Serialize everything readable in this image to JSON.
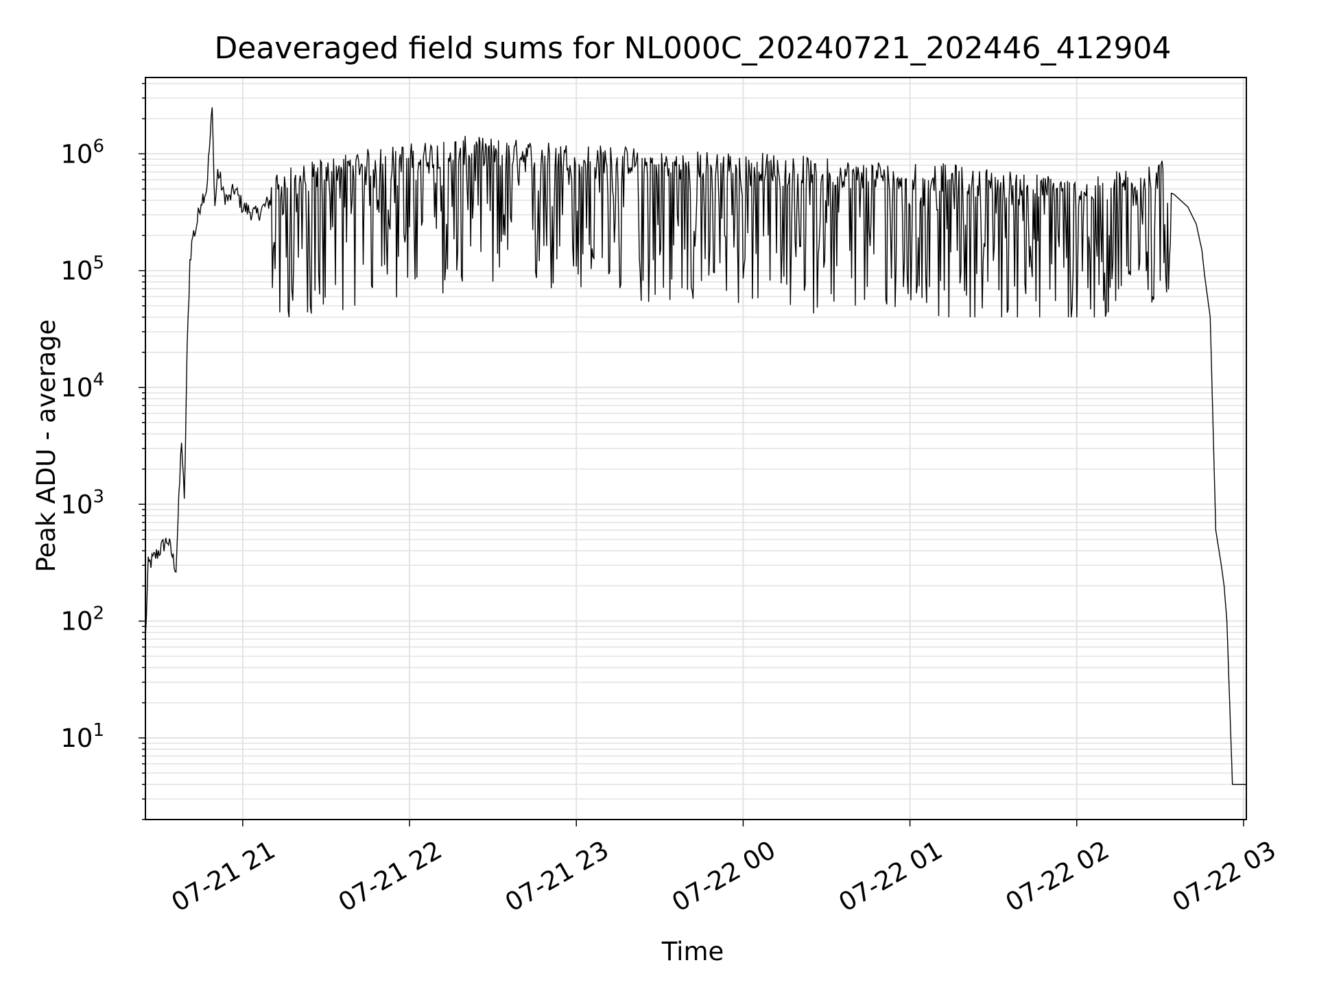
{
  "chart_data": {
    "type": "line",
    "title": "Deaveraged field sums for NL000C_20240721_202446_412904",
    "xlabel": "Time",
    "ylabel": "Peak ADU - average",
    "xscale": "time",
    "yscale": "log",
    "xlim": [
      "2024-07-21 20:25",
      "2024-07-22 03:01"
    ],
    "ylim": [
      2,
      4500000
    ],
    "grid": true,
    "x_ticks": [
      "07-21 21",
      "07-21 22",
      "07-21 23",
      "07-22 00",
      "07-22 01",
      "07-22 02",
      "07-22 03"
    ],
    "y_ticks": [
      {
        "base": "10",
        "exp": "1",
        "value": 10
      },
      {
        "base": "10",
        "exp": "2",
        "value": 100
      },
      {
        "base": "10",
        "exp": "3",
        "value": 1000
      },
      {
        "base": "10",
        "exp": "4",
        "value": 10000
      },
      {
        "base": "10",
        "exp": "5",
        "value": 100000
      },
      {
        "base": "10",
        "exp": "6",
        "value": 1000000
      }
    ],
    "line_color": "#000000",
    "grid_color": "#e3e3e3",
    "series": [
      {
        "x": [
          "2024-07-21 20:25",
          "2024-07-21 20:26",
          "2024-07-21 20:27",
          "2024-07-21 20:30",
          "2024-07-21 20:33",
          "2024-07-21 20:36",
          "2024-07-21 20:38",
          "2024-07-21 20:39",
          "2024-07-21 20:40",
          "2024-07-21 20:41",
          "2024-07-21 20:42",
          "2024-07-21 20:43",
          "2024-07-21 20:45",
          "2024-07-21 20:47",
          "2024-07-21 20:49",
          "2024-07-21 20:50",
          "2024-07-21 20:51",
          "2024-07-21 20:52",
          "2024-07-21 20:53",
          "2024-07-21 20:55",
          "2024-07-21 20:57",
          "2024-07-21 20:58",
          "2024-07-21 21:00",
          "2024-07-21 21:05",
          "2024-07-21 21:10",
          "2024-07-21 21:20",
          "2024-07-21 21:40",
          "2024-07-21 22:00",
          "2024-07-21 22:20",
          "2024-07-21 22:40",
          "2024-07-21 23:00",
          "2024-07-21 23:20",
          "2024-07-21 23:40",
          "2024-07-22 00:00",
          "2024-07-22 00:20",
          "2024-07-22 00:40",
          "2024-07-22 01:00",
          "2024-07-22 01:20",
          "2024-07-22 01:40",
          "2024-07-22 02:00",
          "2024-07-22 02:10",
          "2024-07-22 02:20",
          "2024-07-22 02:30",
          "2024-07-22 02:35",
          "2024-07-22 02:40",
          "2024-07-22 02:43",
          "2024-07-22 02:45",
          "2024-07-22 02:46",
          "2024-07-22 02:48",
          "2024-07-22 02:50",
          "2024-07-22 02:52",
          "2024-07-22 02:53",
          "2024-07-22 02:54",
          "2024-07-22 02:56",
          "2024-07-22 03:01"
        ],
        "values": [
          70,
          300,
          320,
          400,
          500,
          280,
          3700,
          1000,
          20000,
          120000,
          200000,
          220000,
          400000,
          500000,
          2400000,
          350000,
          700000,
          600000,
          450000,
          400000,
          500000,
          450000,
          350000,
          300000,
          400000,
          450000,
          600000,
          700000,
          800000,
          750000,
          700000,
          650000,
          600000,
          600000,
          550000,
          500000,
          500000,
          450000,
          400000,
          350000,
          380000,
          450000,
          500000,
          450000,
          350000,
          250000,
          150000,
          90000,
          40000,
          600,
          300,
          200,
          100,
          4,
          4
        ]
      }
    ]
  }
}
